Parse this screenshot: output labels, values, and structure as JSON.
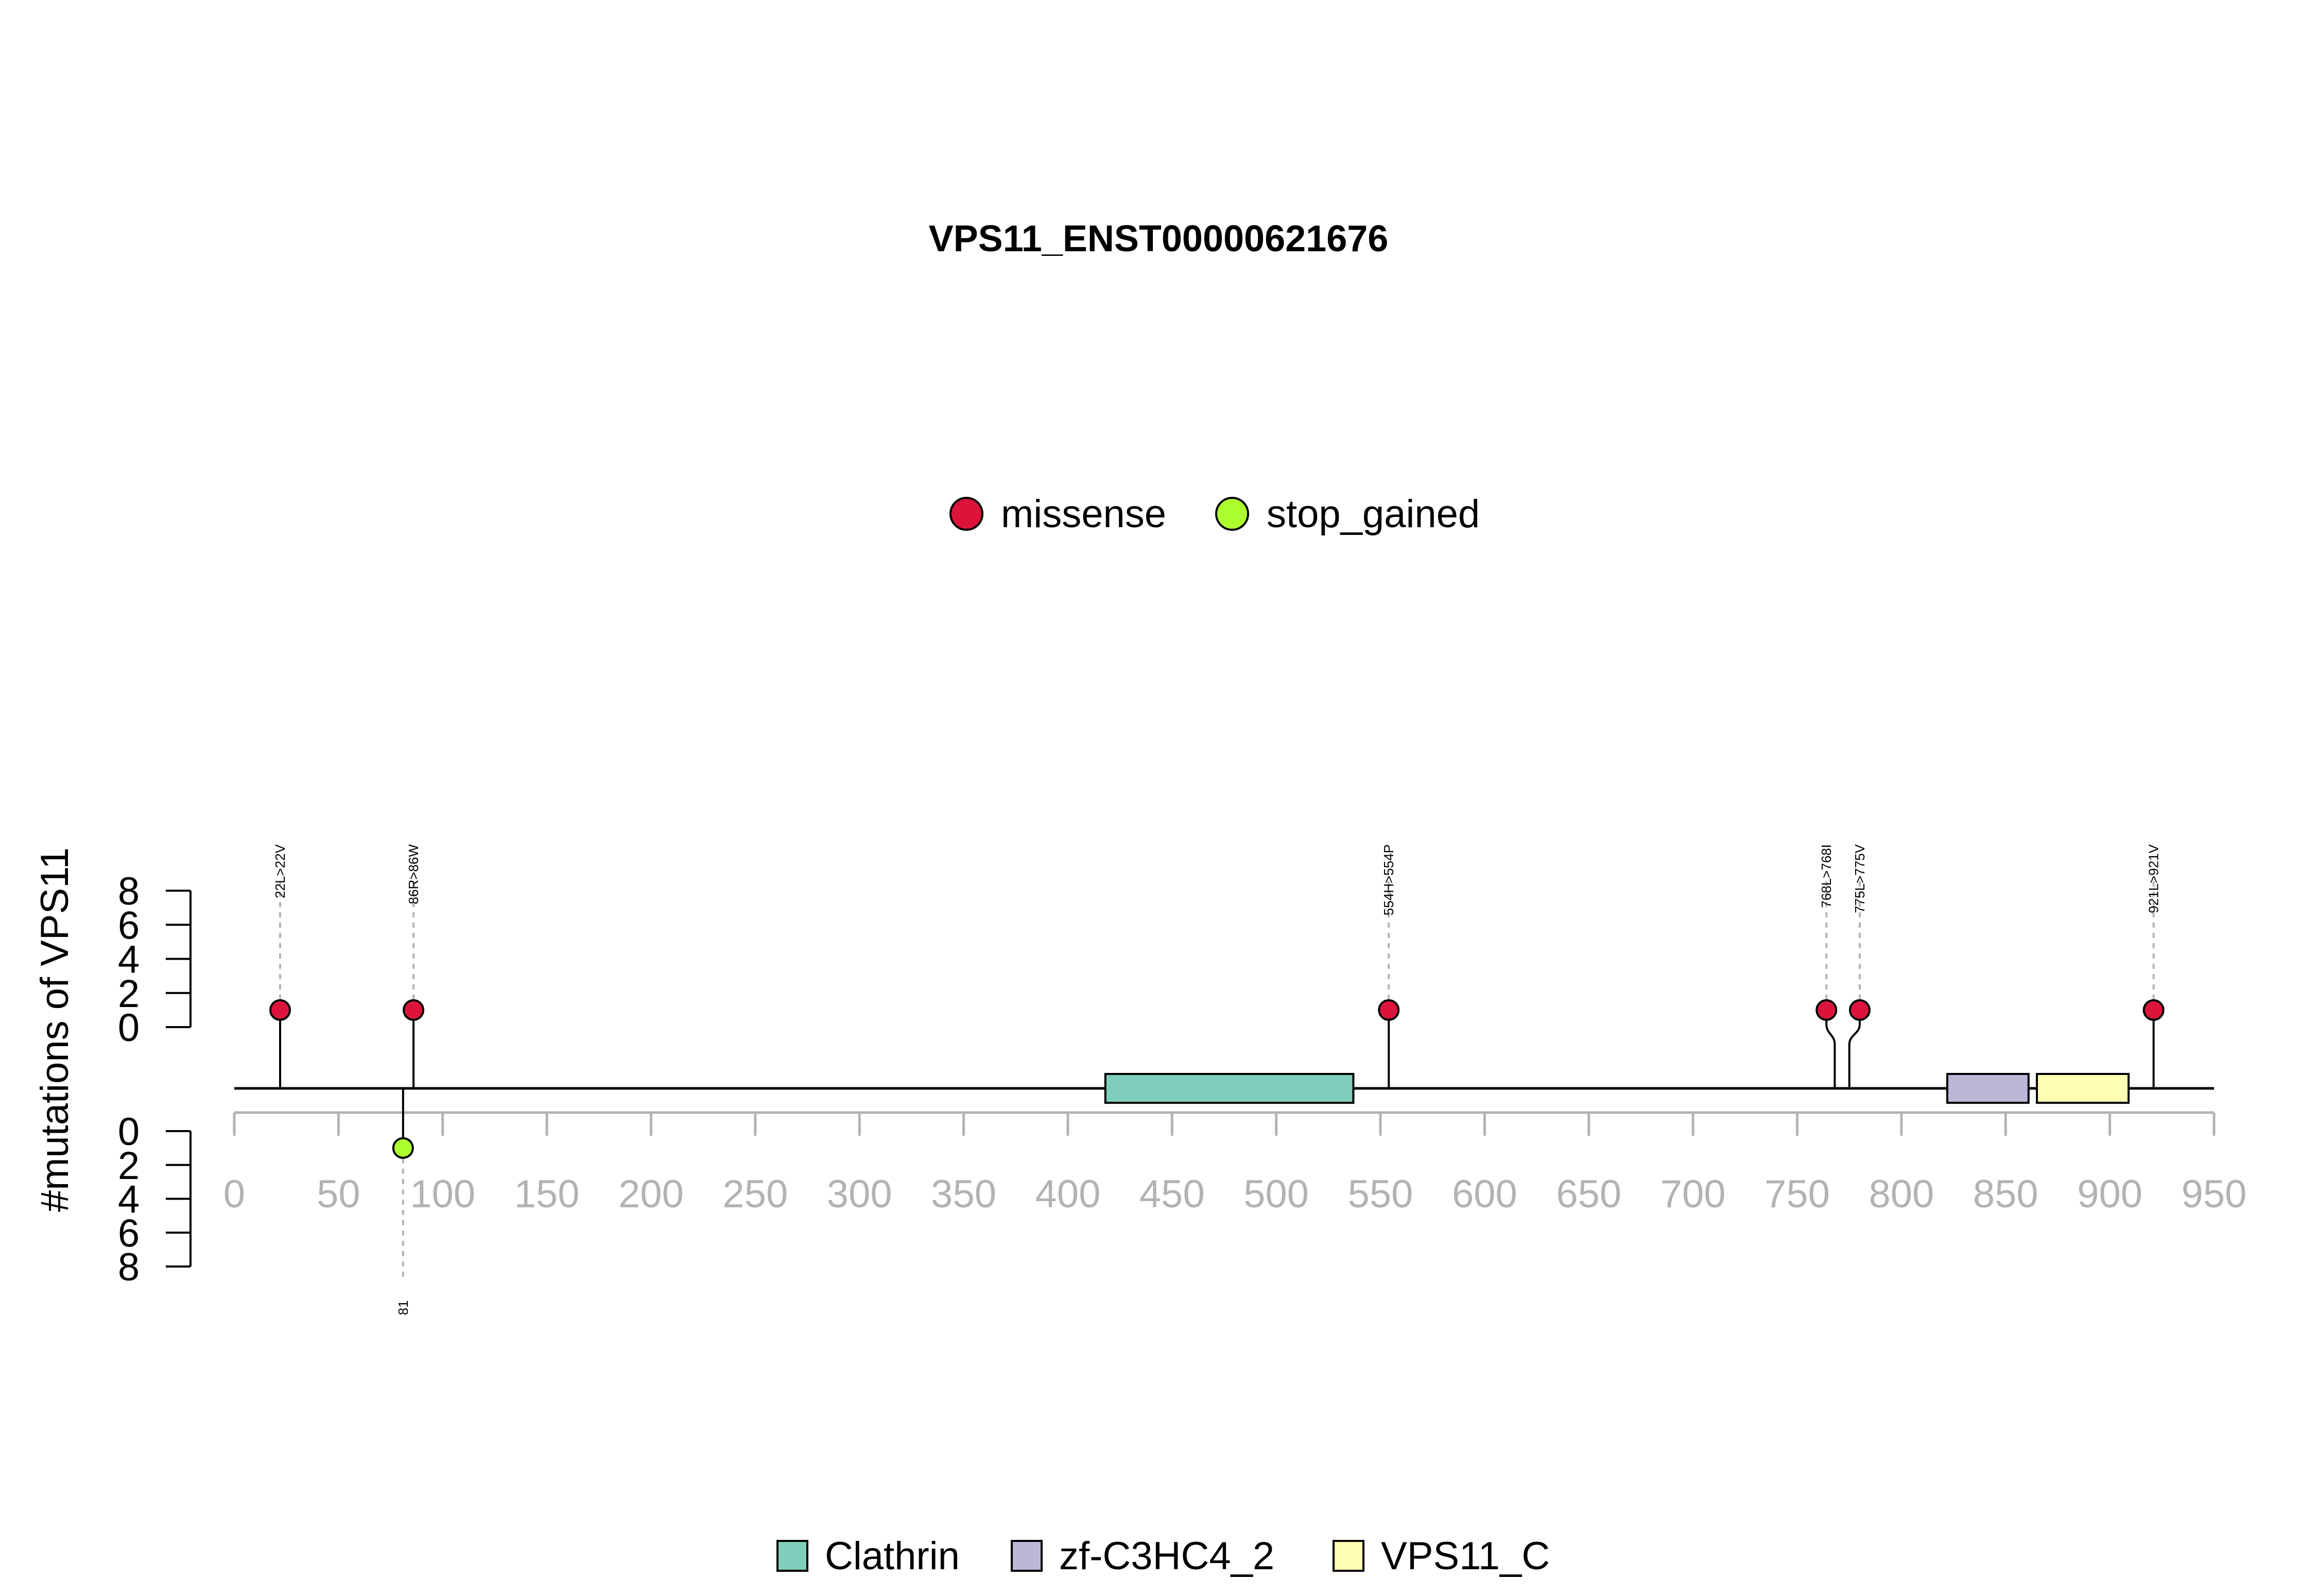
{
  "chart_data": {
    "type": "lollipop",
    "title": "VPS11_ENST00000621676",
    "ylabel": "#mutations of VPS11",
    "xlim": [
      0,
      950
    ],
    "x_ticks": [
      "0",
      "50",
      "100",
      "150",
      "200",
      "250",
      "300",
      "350",
      "400",
      "450",
      "500",
      "550",
      "600",
      "650",
      "700",
      "750",
      "800",
      "850",
      "900",
      "950"
    ],
    "y_ticks_top": [
      "0",
      "2",
      "4",
      "6",
      "8"
    ],
    "y_ticks_bottom": [
      "0",
      "2",
      "4",
      "6",
      "8"
    ],
    "ylim": [
      0,
      8
    ],
    "legend_mutations": [
      {
        "label": "missense",
        "color": "#DC143C"
      },
      {
        "label": "stop_gained",
        "color": "#ADFF2F"
      }
    ],
    "legend_domains": [
      {
        "label": "Clathrin",
        "color": "#7FCDBB"
      },
      {
        "label": "zf-C3HC4_2",
        "color": "#BCB7D6"
      },
      {
        "label": "VPS11_C",
        "color": "#FFFFB3"
      }
    ],
    "domains": [
      {
        "name": "Clathrin",
        "start": 418,
        "end": 537,
        "color": "#7FCDBB"
      },
      {
        "name": "zf-C3HC4_2",
        "start": 822,
        "end": 861,
        "color": "#BCB7D6"
      },
      {
        "name": "VPS11_C",
        "start": 865,
        "end": 909,
        "color": "#FFFFB3"
      }
    ],
    "mutations_top": [
      {
        "pos": 22,
        "label": "22L>22V",
        "count": 1,
        "type": "missense",
        "display_pos": 22
      },
      {
        "pos": 86,
        "label": "86R>86W",
        "count": 1,
        "type": "missense",
        "display_pos": 86
      },
      {
        "pos": 554,
        "label": "554H>554P",
        "count": 1,
        "type": "missense",
        "display_pos": 554
      },
      {
        "pos": 768,
        "label": "768L>768I",
        "count": 1,
        "type": "missense",
        "display_pos": 764
      },
      {
        "pos": 775,
        "label": "775L>775V",
        "count": 1,
        "type": "missense",
        "display_pos": 780
      },
      {
        "pos": 921,
        "label": "921L>921V",
        "count": 1,
        "type": "missense",
        "display_pos": 921
      }
    ],
    "mutations_bottom": [
      {
        "pos": 81,
        "label": "81",
        "count": 1,
        "type": "stop_gained",
        "display_pos": 81
      }
    ]
  }
}
